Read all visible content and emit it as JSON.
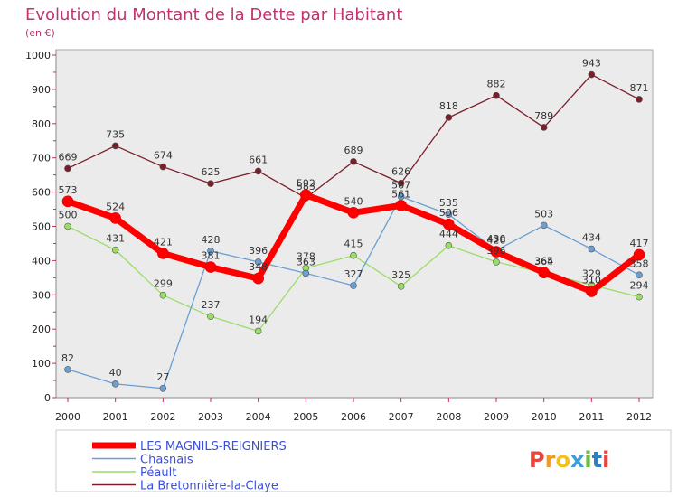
{
  "chart_data": {
    "type": "line",
    "title": "Evolution du Montant de la Dette par Habitant",
    "subtitle": "(en €)",
    "x": [
      "2000",
      "2001",
      "2002",
      "2003",
      "2004",
      "2005",
      "2006",
      "2007",
      "2008",
      "2009",
      "2010",
      "2011",
      "2012"
    ],
    "ylim": [
      0,
      1000
    ],
    "yticks": [
      0,
      100,
      200,
      300,
      400,
      500,
      600,
      700,
      800,
      900,
      1000
    ],
    "grid": false,
    "legend_position": "bottom-left",
    "series": [
      {
        "name": "La Bretonnière-la-Claye",
        "color": "#7a1e2a",
        "width": 1.3,
        "values": [
          669,
          735,
          674,
          625,
          661,
          583,
          689,
          626,
          818,
          882,
          789,
          943,
          871
        ]
      },
      {
        "name": "Péault",
        "color": "#99dd66",
        "width": 1.3,
        "values": [
          500,
          431,
          299,
          237,
          194,
          378,
          415,
          325,
          444,
          396,
          364,
          329,
          294
        ]
      },
      {
        "name": "Chasnais",
        "color": "#6a9fd4",
        "width": 1.3,
        "values": [
          82,
          40,
          27,
          428,
          396,
          363,
          327,
          587,
          535,
          430,
          503,
          434,
          358
        ]
      },
      {
        "name": "LES MAGNILS-REIGNIERS",
        "color": "#ff0000",
        "width": 7,
        "values": [
          573,
          524,
          421,
          381,
          348,
          592,
          540,
          561,
          506,
          426,
          365,
          310,
          417
        ]
      }
    ],
    "legend_order": [
      "LES MAGNILS-REIGNIERS",
      "Chasnais",
      "Péault",
      "La Bretonnière-la-Claye"
    ]
  },
  "logo": {
    "text": "Proxiti",
    "colors": [
      "#e8463c",
      "#f39a1e",
      "#f2c21a",
      "#3aa0dc",
      "#6cbf3c",
      "#2d7fc1",
      "#e8463c"
    ]
  }
}
